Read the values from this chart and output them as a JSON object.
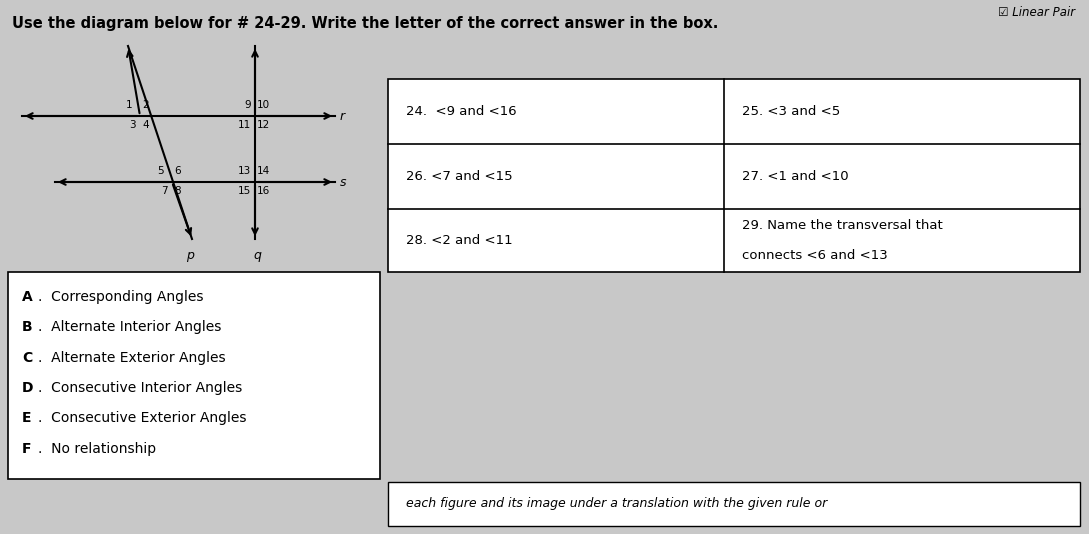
{
  "bg_color": "#c8c8c8",
  "title": "Use the diagram below for # 24-29. Write the letter of the correct answer in the box.",
  "top_right_text": "☑ Linear Pair",
  "answer_options": [
    "A.  Corresponding Angles",
    "B.  Alternate Interior Angles",
    "C.  Alternate Exterior Angles",
    "D.  Consecutive Interior Angles",
    "E.  Consecutive Exterior Angles",
    "F.  No relationship"
  ],
  "table_cells": [
    [
      "24.  <9 and <16",
      "25. <3 and <5"
    ],
    [
      "26. <7 and <15",
      "27. <1 and <10"
    ],
    [
      "28. <2 and <11",
      "29. Name the transversal that\nconnects <6 and <13"
    ]
  ],
  "bottom_text": "each figure and its image under a translation with the given rule or"
}
